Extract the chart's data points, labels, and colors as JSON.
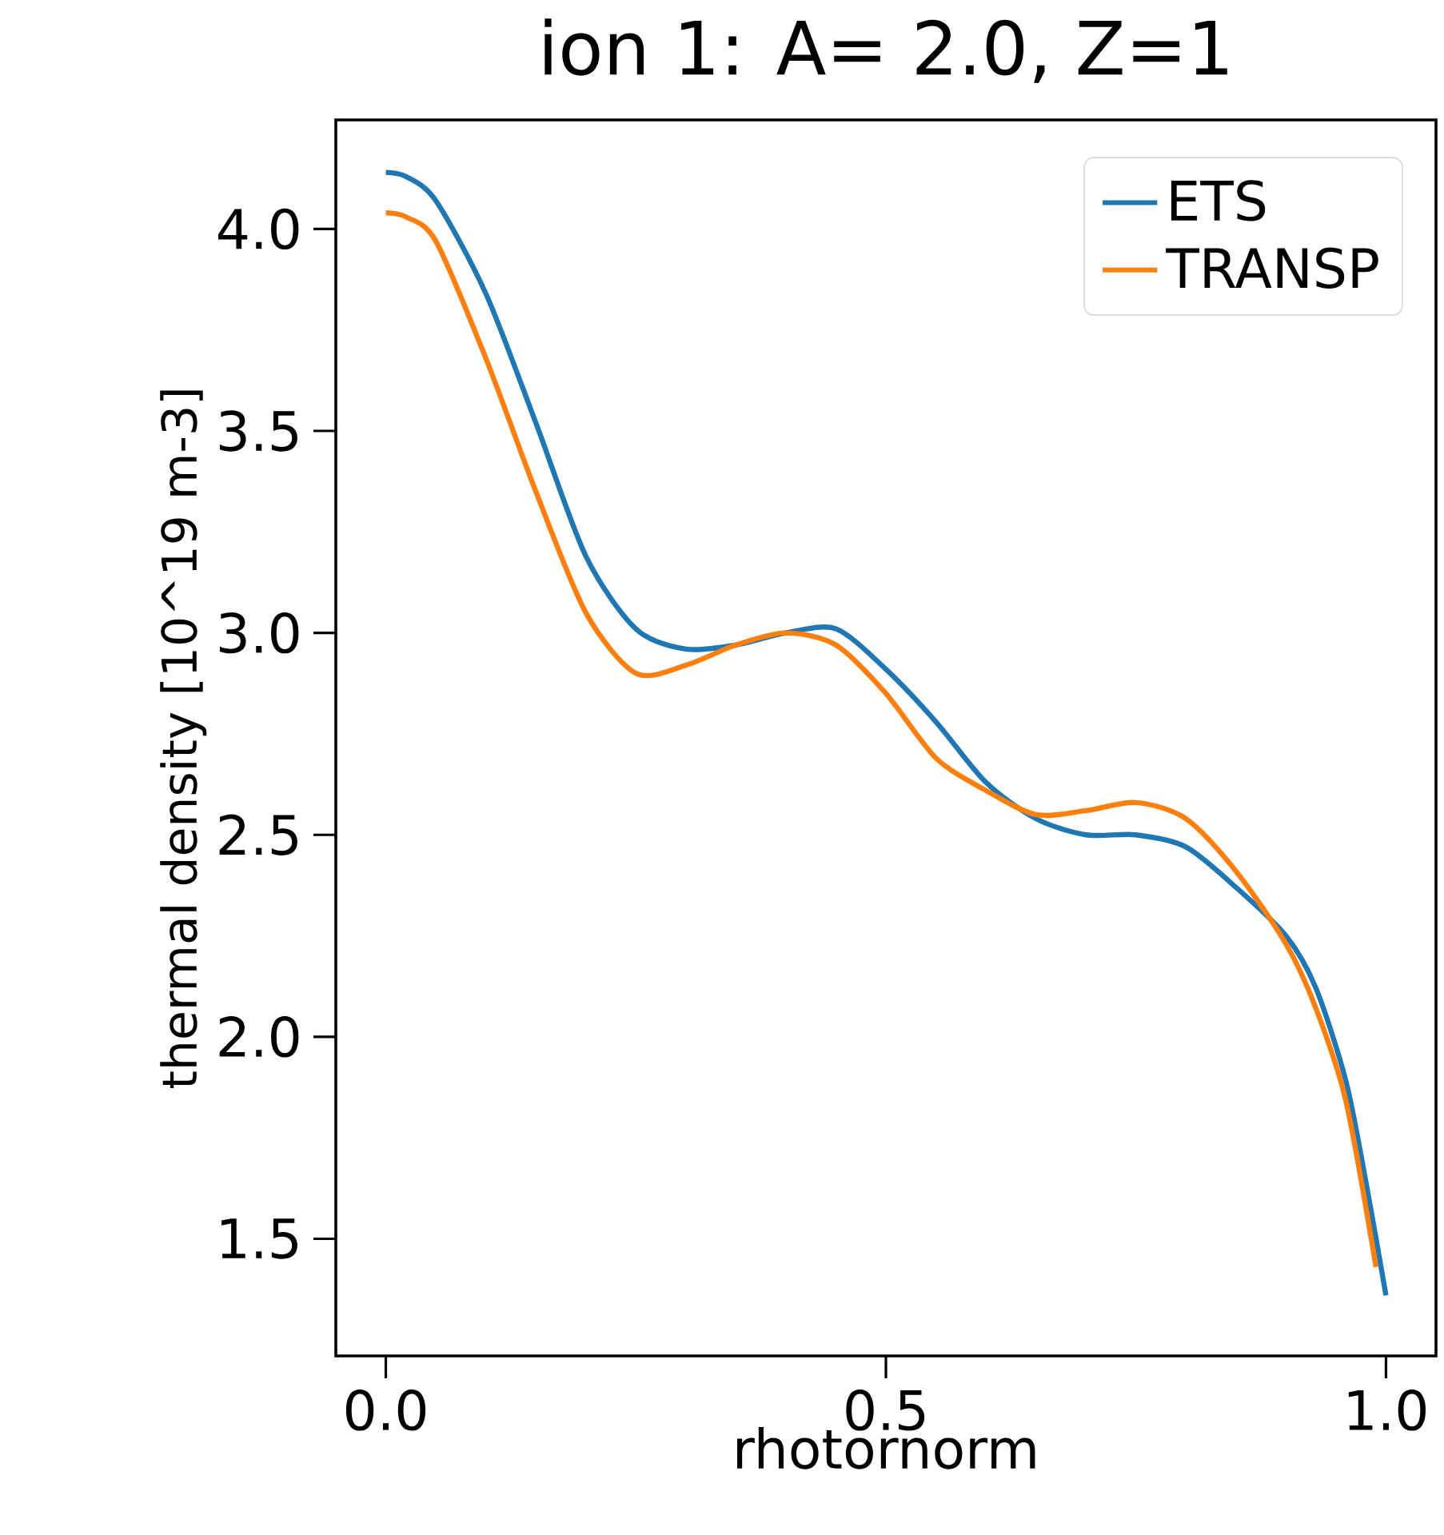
{
  "chart_data": {
    "type": "line",
    "title": "ion 1: A= 2.0, Z=1",
    "xlabel": "rhotornorm",
    "ylabel": "thermal density [10^19 m-3]",
    "xlim": [
      -0.05,
      1.05
    ],
    "ylim": [
      1.21,
      4.27
    ],
    "xticks": [
      {
        "value": 0,
        "label": "0.0"
      },
      {
        "value": 0.5,
        "label": "0.5"
      },
      {
        "value": 1,
        "label": "1.0"
      }
    ],
    "yticks": [
      {
        "value": 1.5,
        "label": "1.5"
      },
      {
        "value": 2,
        "label": "2.0"
      },
      {
        "value": 2.5,
        "label": "2.5"
      },
      {
        "value": 3,
        "label": "3.0"
      },
      {
        "value": 3.5,
        "label": "3.5"
      },
      {
        "value": 4,
        "label": "4.0"
      }
    ],
    "legend": "top right",
    "grid": false,
    "x": [
      0,
      0.02,
      0.05,
      0.1,
      0.15,
      0.2,
      0.25,
      0.3,
      0.35,
      0.4,
      0.45,
      0.5,
      0.55,
      0.6,
      0.65,
      0.7,
      0.75,
      0.8,
      0.85,
      0.9,
      0.93,
      0.96,
      0.98,
      1.0
    ],
    "series": [
      {
        "name": "ETS",
        "color": "#1f77b4",
        "values": [
          4.14,
          4.13,
          4.07,
          3.84,
          3.52,
          3.19,
          3.01,
          2.96,
          2.97,
          3.0,
          3.01,
          2.91,
          2.78,
          2.63,
          2.54,
          2.5,
          2.5,
          2.47,
          2.37,
          2.25,
          2.12,
          1.89,
          1.64,
          1.36
        ]
      },
      {
        "name": "TRANSP",
        "color": "#ff7f0e",
        "x": [
          0,
          0.02,
          0.05,
          0.1,
          0.15,
          0.2,
          0.25,
          0.3,
          0.35,
          0.4,
          0.45,
          0.5,
          0.55,
          0.6,
          0.65,
          0.7,
          0.75,
          0.8,
          0.85,
          0.9,
          0.93,
          0.96,
          0.99
        ],
        "values": [
          4.04,
          4.03,
          3.97,
          3.68,
          3.35,
          3.05,
          2.9,
          2.92,
          2.97,
          3.0,
          2.97,
          2.85,
          2.69,
          2.61,
          2.55,
          2.56,
          2.58,
          2.54,
          2.41,
          2.23,
          2.07,
          1.84,
          1.43
        ]
      }
    ]
  }
}
